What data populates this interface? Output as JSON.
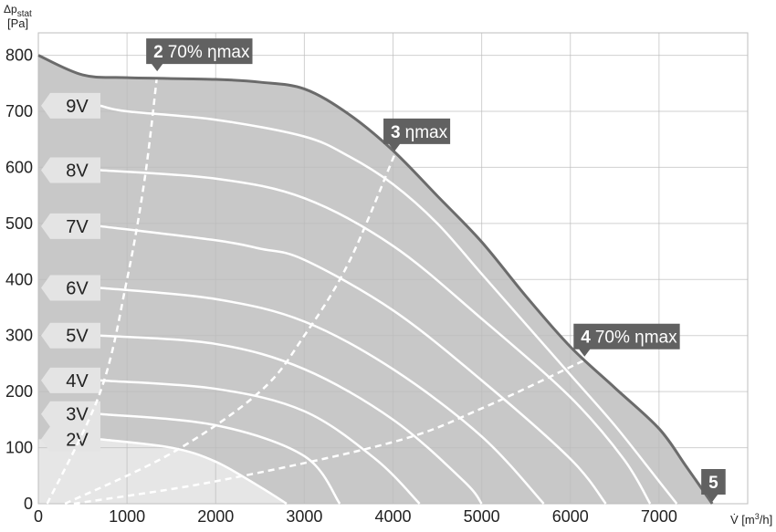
{
  "chart_data": {
    "type": "line",
    "y_label": {
      "symbol": "Δp",
      "subscript": "stat",
      "unit": "[Pa]"
    },
    "x_label": {
      "symbol": "V̇",
      "unit_open": "[m",
      "unit_power": "3",
      "unit_close": "/h]"
    },
    "xlim": [
      0,
      8000
    ],
    "ylim": [
      0,
      840
    ],
    "xticks": [
      0,
      1000,
      2000,
      3000,
      4000,
      5000,
      6000,
      7000
    ],
    "yticks": [
      0,
      100,
      200,
      300,
      400,
      500,
      600,
      700,
      800
    ],
    "grid": true,
    "envelope": {
      "color": "#6b6b6b",
      "fill": "#c8c8c8",
      "x": [
        0,
        500,
        1000,
        2000,
        2500,
        3000,
        3500,
        4000,
        4500,
        5000,
        5500,
        6000,
        6500,
        7000,
        7300,
        7600
      ],
      "values": [
        800,
        765,
        760,
        757,
        752,
        740,
        695,
        630,
        549,
        467,
        370,
        280,
        207,
        134,
        68,
        0
      ]
    },
    "series": [
      {
        "name": "2V",
        "color": "#ffffff",
        "x": [
          700,
          1500,
          2000,
          2500,
          2800
        ],
        "values": [
          115,
          100,
          75,
          30,
          0
        ]
      },
      {
        "name": "3V",
        "color": "#ffffff",
        "x": [
          700,
          2000,
          3000,
          3400
        ],
        "values": [
          160,
          140,
          85,
          0
        ]
      },
      {
        "name": "4V",
        "color": "#ffffff",
        "x": [
          700,
          2000,
          3000,
          3800,
          4300
        ],
        "values": [
          220,
          205,
          165,
          80,
          0
        ]
      },
      {
        "name": "5V",
        "color": "#ffffff",
        "x": [
          700,
          2000,
          3000,
          4000,
          4800,
          5000
        ],
        "values": [
          300,
          285,
          240,
          150,
          40,
          0
        ]
      },
      {
        "name": "6V",
        "color": "#ffffff",
        "x": [
          700,
          2000,
          3000,
          4000,
          5000,
          5700
        ],
        "values": [
          385,
          365,
          325,
          240,
          120,
          0
        ]
      },
      {
        "name": "7V",
        "color": "#ffffff",
        "x": [
          700,
          2000,
          2500,
          3000,
          4000,
          5000,
          6000,
          6400
        ],
        "values": [
          495,
          470,
          455,
          435,
          345,
          220,
          80,
          0
        ]
      },
      {
        "name": "8V",
        "color": "#ffffff",
        "x": [
          700,
          2000,
          3000,
          4000,
          5000,
          6000,
          6600,
          6900
        ],
        "values": [
          595,
          580,
          545,
          460,
          330,
          190,
          80,
          0
        ]
      },
      {
        "name": "9V",
        "color": "#ffffff",
        "x": [
          700,
          1000,
          2000,
          3000,
          3500,
          4000,
          4500,
          5000,
          5500,
          6000,
          6500,
          7000,
          7200
        ],
        "values": [
          710,
          700,
          685,
          655,
          620,
          570,
          500,
          410,
          320,
          230,
          140,
          40,
          0
        ]
      }
    ],
    "efficiency_lines": [
      {
        "number": "2",
        "label": "70% ηmax",
        "color": "#ffffff",
        "x": [
          100,
          700,
          1000,
          1200,
          1340
        ],
        "values": [
          0,
          200,
          400,
          580,
          765
        ]
      },
      {
        "number": "3",
        "label": "ηmax",
        "color": "#ffffff",
        "x": [
          300,
          1500,
          2500,
          3000,
          3500,
          4016
        ],
        "values": [
          0,
          90,
          200,
          300,
          430,
          622
        ]
      },
      {
        "number": "4",
        "label": "70% ηmax",
        "color": "#ffffff",
        "x": [
          400,
          2000,
          4000,
          5000,
          6160
        ],
        "values": [
          0,
          40,
          110,
          170,
          256
        ]
      }
    ],
    "end_marker": {
      "number": "5",
      "x": 7600,
      "value": 0
    },
    "tag_color": "#616161"
  }
}
